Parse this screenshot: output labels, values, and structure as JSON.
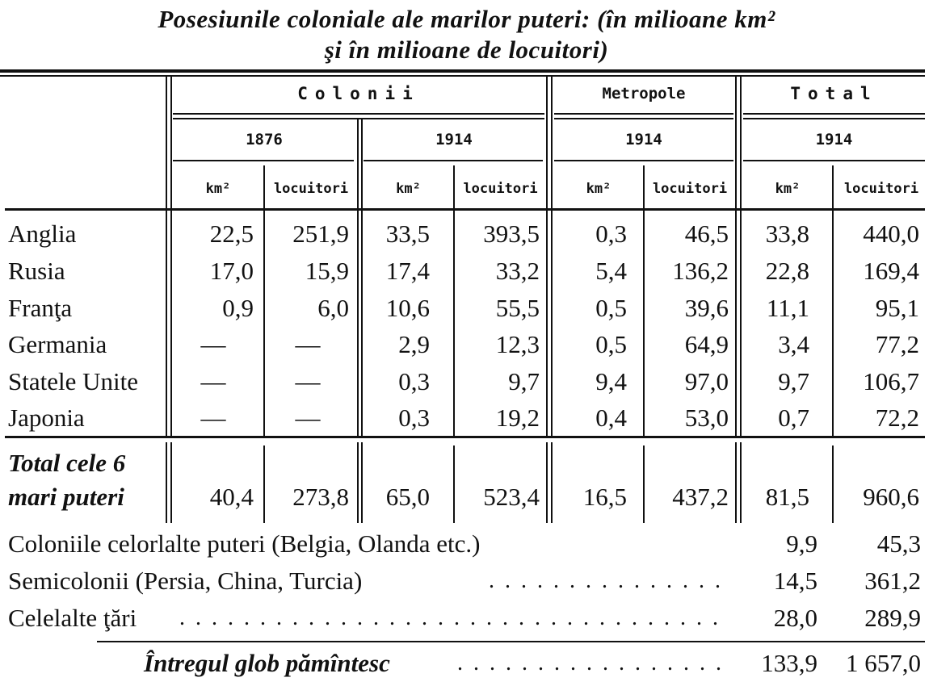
{
  "title": {
    "line1": "Posesiunile coloniale ale marilor puteri: (în milioane km²",
    "line2": "şi în milioane de locuitori)"
  },
  "header": {
    "colonii": "Colonii",
    "metropole": "Metropole",
    "total": "Total",
    "years": [
      "1876",
      "1914",
      "1914",
      "1914"
    ],
    "units": [
      "km²",
      "locuitori",
      "km²",
      "locuitori",
      "km²",
      "locuitori",
      "km²",
      "locuitori"
    ]
  },
  "rows": [
    {
      "name": "Anglia",
      "values": [
        "22,5",
        "251,9",
        "33,5",
        "393,5",
        "0,3",
        "46,5",
        "33,8",
        "440,0"
      ]
    },
    {
      "name": "Rusia",
      "values": [
        "17,0",
        "15,9",
        "17,4",
        "33,2",
        "5,4",
        "136,2",
        "22,8",
        "169,4"
      ]
    },
    {
      "name": "Franţa",
      "values": [
        "0,9",
        "6,0",
        "10,6",
        "55,5",
        "0,5",
        "39,6",
        "11,1",
        "95,1"
      ]
    },
    {
      "name": "Germania",
      "values": [
        "—",
        "—",
        "2,9",
        "12,3",
        "0,5",
        "64,9",
        "3,4",
        "77,2"
      ]
    },
    {
      "name": "Statele Unite",
      "values": [
        "—",
        "—",
        "0,3",
        "9,7",
        "9,4",
        "97,0",
        "9,7",
        "106,7"
      ]
    },
    {
      "name": "Japonia",
      "values": [
        "—",
        "—",
        "0,3",
        "19,2",
        "0,4",
        "53,0",
        "0,7",
        "72,2"
      ]
    }
  ],
  "total6": {
    "label1": "Total cele 6",
    "label2": "mari puteri",
    "values": [
      "40,4",
      "273,8",
      "65,0",
      "523,4",
      "16,5",
      "437,2",
      "81,5",
      "960,6"
    ]
  },
  "extra": [
    {
      "label": "Coloniile celorlalte puteri (Belgia, Olanda etc.)",
      "km": "9,9",
      "loc": "45,3"
    },
    {
      "label": "Semicolonii (Persia, China, Turcia)",
      "km": "14,5",
      "loc": "361,2"
    },
    {
      "label": "Celelalte ţări",
      "km": "28,0",
      "loc": "289,9"
    }
  ],
  "glob": {
    "label": "Întregul glob pămîntesc",
    "km": "133,9",
    "loc": "1 657,0"
  }
}
